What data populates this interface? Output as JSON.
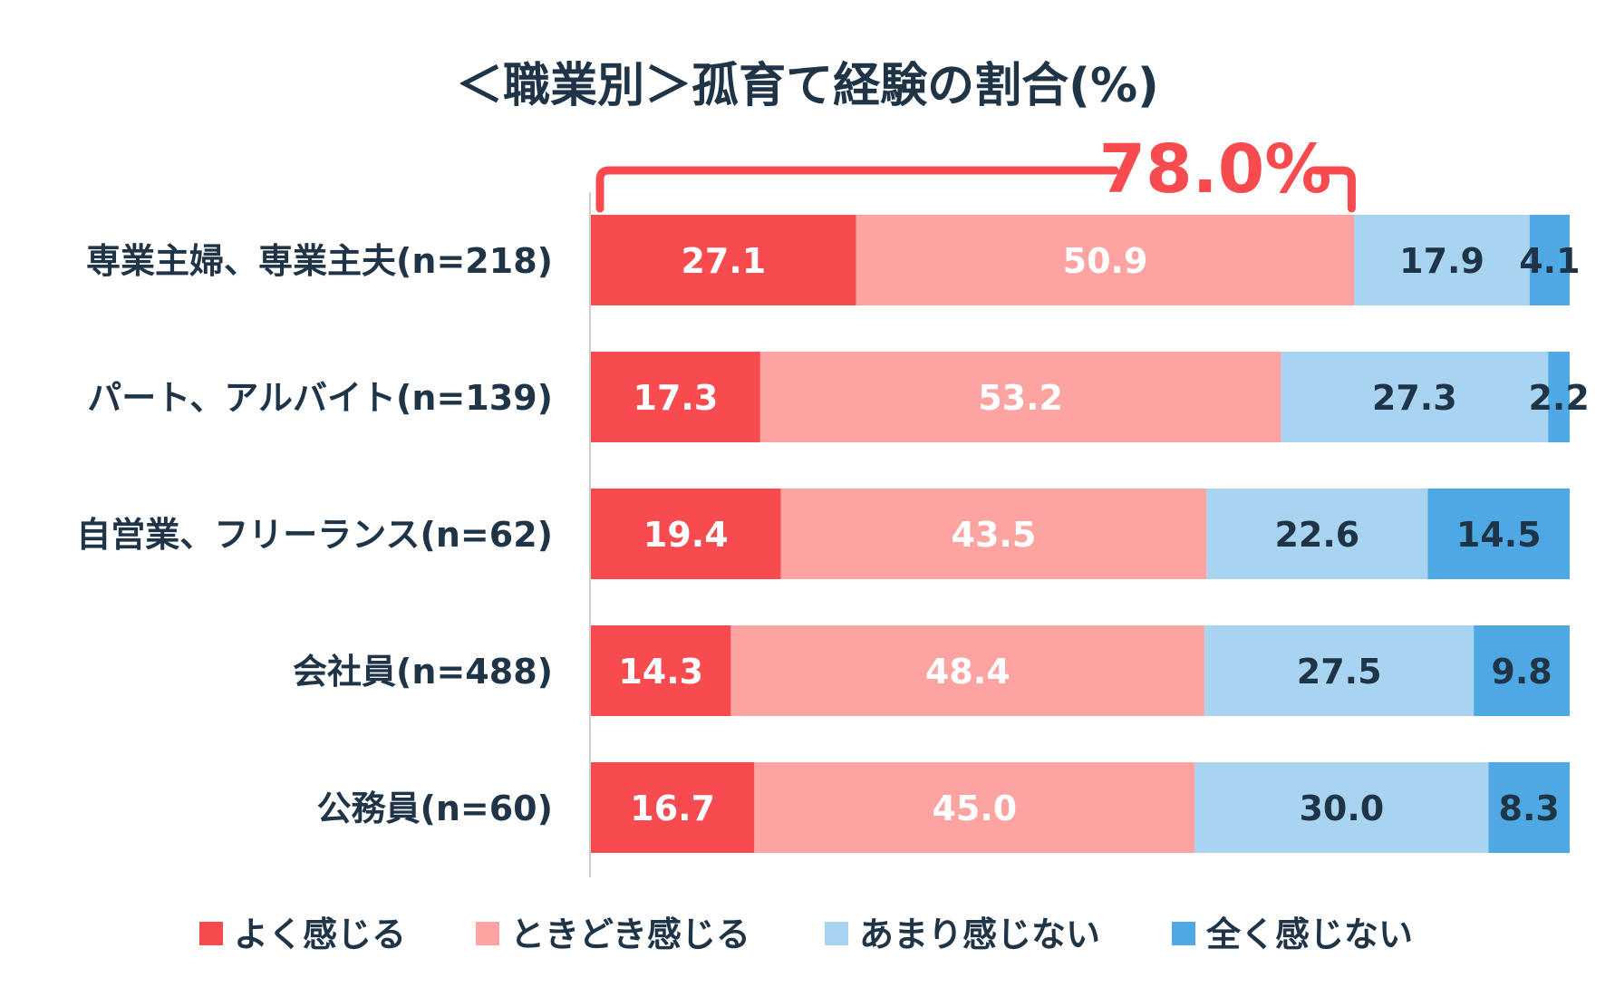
{
  "chart_data": {
    "type": "bar",
    "orientation": "horizontal",
    "stacked": true,
    "title": "＜職業別＞孤育て経験の割合(%)",
    "categories": [
      "専業主婦、専業主夫(n=218)",
      "パート、アルバイト(n=139)",
      "自営業、フリーランス(n=62)",
      "会社員(n=488)",
      "公務員(n=60)"
    ],
    "series": [
      {
        "name": "よく感じる",
        "color": "#f84b4f",
        "label_color": "#ffffff",
        "values": [
          27.1,
          17.3,
          19.4,
          14.3,
          16.7
        ]
      },
      {
        "name": "ときどき感じる",
        "color": "#fda3a1",
        "label_color": "#ffffff",
        "values": [
          50.9,
          53.2,
          43.5,
          48.4,
          45.0
        ]
      },
      {
        "name": "あまり感じない",
        "color": "#a8d4f2",
        "label_color": "#1f3547",
        "values": [
          17.9,
          27.3,
          22.6,
          27.5,
          30.0
        ]
      },
      {
        "name": "全く感じない",
        "color": "#4ea8e4",
        "label_color": "#1f3547",
        "values": [
          4.1,
          2.2,
          14.5,
          9.8,
          8.3
        ]
      }
    ],
    "value_labels": [
      [
        "27.1",
        "50.9",
        "17.9",
        "4.1"
      ],
      [
        "17.3",
        "53.2",
        "27.3",
        "2.2"
      ],
      [
        "19.4",
        "43.5",
        "22.6",
        "14.5"
      ],
      [
        "14.3",
        "48.4",
        "27.5",
        "9.8"
      ],
      [
        "16.7",
        "45.0",
        "30.0",
        "8.3"
      ]
    ],
    "xlim": [
      0,
      100
    ],
    "annotation": {
      "text": "78.0%",
      "row": 0,
      "from": 0,
      "to": 78.0,
      "color": "#f84b4f"
    },
    "legend_position": "bottom",
    "grid": false
  }
}
